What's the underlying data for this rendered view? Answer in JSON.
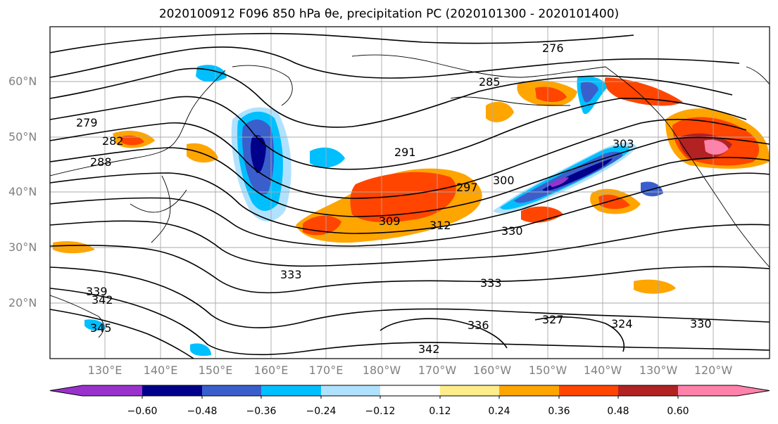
{
  "figure": {
    "title": "2020100912 F096 850 hPa θe, precipitation PC (2020101300 - 2020101400)"
  },
  "axes": {
    "lat_labels": [
      "60°N",
      "50°N",
      "40°N",
      "30°N",
      "20°N"
    ],
    "lon_labels": [
      "130°E",
      "140°E",
      "150°E",
      "160°E",
      "170°E",
      "180°W",
      "170°W",
      "160°W",
      "150°W",
      "140°W",
      "130°W",
      "120°W"
    ],
    "grid": true
  },
  "colorbar": {
    "ticks": [
      "−0.60",
      "−0.48",
      "−0.36",
      "−0.24",
      "−0.12",
      "0.12",
      "0.24",
      "0.36",
      "0.48",
      "0.60"
    ],
    "colors": [
      "#9932cc",
      "#00008b",
      "#3a5fcd",
      "#00bfff",
      "#b0e2ff",
      "#ffffff",
      "#ffec8b",
      "#ffa500",
      "#ff4500",
      "#b22222",
      "#ff82ab"
    ]
  },
  "contour_labels": [
    "276",
    "279",
    "282",
    "285",
    "288",
    "291",
    "297",
    "300",
    "303",
    "309",
    "312",
    "330",
    "333",
    "336",
    "339",
    "342",
    "345",
    "327",
    "324"
  ]
}
